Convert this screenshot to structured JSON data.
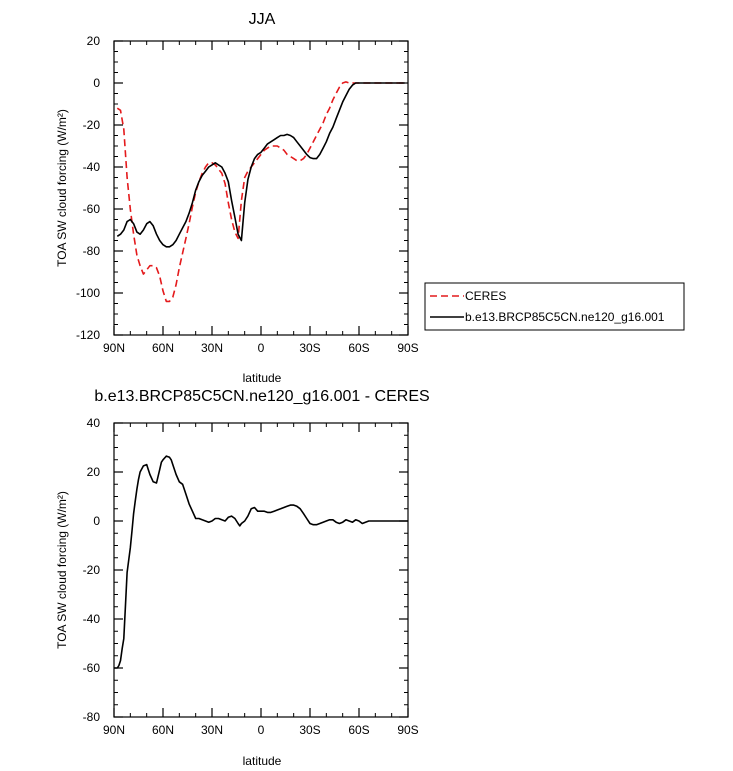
{
  "chart_data": [
    {
      "type": "line",
      "title": "JJA",
      "xlabel": "latitude",
      "ylabel": "TOA SW cloud forcing (W/m²)",
      "xlim": [
        -90,
        90
      ],
      "ylim": [
        -120,
        20
      ],
      "x_tick_values": [
        -90,
        -60,
        -30,
        0,
        30,
        60,
        90
      ],
      "x_tick_labels": [
        "90N",
        "60N",
        "30N",
        "0",
        "30S",
        "60S",
        "90S"
      ],
      "y_tick_values": [
        20,
        0,
        -20,
        -40,
        -60,
        -80,
        -100,
        -120
      ],
      "y_tick_labels": [
        "20",
        "0",
        "-20",
        "-40",
        "-60",
        "-80",
        "-100",
        "-120"
      ],
      "legend_position": "outside-right",
      "series": [
        {
          "name": "CERES",
          "color": "#e41a1c",
          "dash": "dashed",
          "x": [
            -88,
            -86,
            -84,
            -82,
            -80,
            -78,
            -76,
            -74,
            -72,
            -70,
            -68,
            -66,
            -64,
            -62,
            -60,
            -58,
            -56,
            -54,
            -52,
            -50,
            -48,
            -46,
            -44,
            -42,
            -40,
            -38,
            -36,
            -34,
            -32,
            -30,
            -28,
            -26,
            -24,
            -22,
            -20,
            -18,
            -16,
            -14,
            -12,
            -10,
            -8,
            -6,
            -4,
            -2,
            0,
            2,
            4,
            6,
            8,
            10,
            12,
            14,
            16,
            18,
            20,
            22,
            24,
            26,
            28,
            30,
            32,
            34,
            36,
            38,
            40,
            42,
            44,
            46,
            48,
            50,
            52,
            54,
            56,
            58,
            60,
            62,
            64,
            66,
            68,
            70,
            72,
            74,
            76,
            78,
            80,
            82,
            84,
            86,
            88
          ],
          "y": [
            -12,
            -13,
            -22,
            -45,
            -60,
            -72,
            -82,
            -87,
            -91,
            -89,
            -87,
            -87,
            -88,
            -92,
            -99,
            -104,
            -104,
            -102,
            -96,
            -88,
            -81,
            -74,
            -67,
            -59,
            -52,
            -47,
            -43,
            -40,
            -38,
            -38,
            -39,
            -41,
            -43,
            -48,
            -57,
            -65,
            -71,
            -74,
            -56,
            -45,
            -42,
            -40,
            -38,
            -36,
            -34,
            -32,
            -31,
            -30,
            -30,
            -30,
            -31,
            -32,
            -34,
            -35,
            -36,
            -37,
            -37,
            -36,
            -34,
            -31,
            -28,
            -25,
            -22,
            -19,
            -15,
            -12,
            -8,
            -5,
            -2,
            0,
            0.5,
            0,
            0,
            0,
            0,
            0,
            0,
            0,
            0,
            0,
            0,
            0,
            0,
            0,
            0,
            0,
            0,
            0,
            0
          ]
        },
        {
          "name": "b.e13.BRCP85C5CN.ne120_g16.001",
          "color": "#000000",
          "dash": "solid",
          "x": [
            -88,
            -86,
            -84,
            -82,
            -80,
            -78,
            -76,
            -74,
            -72,
            -70,
            -68,
            -66,
            -64,
            -62,
            -60,
            -58,
            -56,
            -54,
            -52,
            -50,
            -48,
            -46,
            -44,
            -42,
            -40,
            -38,
            -36,
            -34,
            -32,
            -30,
            -28,
            -26,
            -24,
            -22,
            -20,
            -18,
            -16,
            -14,
            -12,
            -10,
            -8,
            -6,
            -4,
            -2,
            0,
            2,
            4,
            6,
            8,
            10,
            12,
            14,
            16,
            18,
            20,
            22,
            24,
            26,
            28,
            30,
            32,
            34,
            36,
            38,
            40,
            42,
            44,
            46,
            48,
            50,
            52,
            54,
            56,
            58,
            60,
            62,
            64,
            66,
            68,
            70,
            72,
            74,
            76,
            78,
            80,
            82,
            84,
            86,
            88
          ],
          "y": [
            -73,
            -72,
            -70,
            -66,
            -65,
            -67,
            -71,
            -72,
            -70,
            -67,
            -66,
            -68,
            -72,
            -75,
            -77,
            -78,
            -78,
            -77,
            -75,
            -72,
            -69,
            -66,
            -62,
            -57,
            -51,
            -47,
            -44,
            -42,
            -40,
            -39,
            -38,
            -39,
            -40,
            -43,
            -47,
            -56,
            -64,
            -72,
            -75,
            -57,
            -46,
            -40,
            -36,
            -34,
            -33,
            -31,
            -29,
            -28,
            -27,
            -26,
            -25,
            -25,
            -24.5,
            -25,
            -26,
            -28,
            -30,
            -32,
            -34,
            -35.5,
            -36,
            -36,
            -34,
            -31,
            -28,
            -24,
            -21,
            -17,
            -13,
            -9,
            -6,
            -3,
            -1,
            0,
            0,
            0,
            0,
            0,
            0,
            0,
            0,
            0,
            0,
            0,
            0,
            0,
            0,
            0,
            0
          ]
        }
      ]
    },
    {
      "type": "line",
      "title": "b.e13.BRCP85C5CN.ne120_g16.001 - CERES",
      "xlabel": "latitude",
      "ylabel": "TOA SW cloud forcing (W/m²)",
      "xlim": [
        -90,
        90
      ],
      "ylim": [
        -80,
        40
      ],
      "x_tick_values": [
        -90,
        -60,
        -30,
        0,
        30,
        60,
        90
      ],
      "x_tick_labels": [
        "90N",
        "60N",
        "30N",
        "0",
        "30S",
        "60S",
        "90S"
      ],
      "y_tick_values": [
        40,
        20,
        0,
        -20,
        -40,
        -60,
        -80
      ],
      "y_tick_labels": [
        "40",
        "20",
        "0",
        "-20",
        "-40",
        "-60",
        "-80"
      ],
      "series": [
        {
          "color": "#000000",
          "dash": "solid",
          "x": [
            -90,
            -88,
            -87,
            -86,
            -85,
            -84,
            -83,
            -82,
            -81,
            -80,
            -79,
            -78,
            -77,
            -76,
            -75,
            -74,
            -72,
            -70,
            -69,
            -68,
            -66,
            -64,
            -62,
            -61,
            -60,
            -58,
            -56,
            -55,
            -54,
            -52,
            -50,
            -48,
            -46,
            -44,
            -42,
            -40,
            -38,
            -36,
            -34,
            -32,
            -30,
            -28,
            -26,
            -24,
            -22,
            -20,
            -18,
            -16,
            -14,
            -13,
            -12,
            -10,
            -8,
            -6,
            -4,
            -2,
            0,
            2,
            4,
            6,
            8,
            10,
            12,
            14,
            16,
            18,
            20,
            22,
            24,
            26,
            28,
            30,
            32,
            34,
            36,
            38,
            40,
            42,
            44,
            46,
            48,
            50,
            52,
            54,
            56,
            58,
            60,
            62,
            64,
            66,
            68,
            70,
            72,
            74,
            76,
            78,
            80,
            82,
            84,
            86,
            88,
            90
          ],
          "y": [
            -60,
            -60,
            -59,
            -57,
            -52,
            -48,
            -35,
            -21,
            -16,
            -11,
            -4,
            3,
            8,
            13,
            17,
            20,
            22.5,
            23,
            21,
            19,
            16,
            15.5,
            21,
            24,
            25,
            26.5,
            26,
            25,
            23,
            19,
            16,
            15,
            11,
            7,
            4,
            1,
            1,
            0.5,
            0,
            -0.5,
            0,
            1,
            1,
            0.5,
            0,
            1.5,
            2,
            1,
            -1,
            -2,
            -1,
            0,
            2,
            5,
            5.5,
            4,
            4,
            4,
            3.5,
            3.5,
            4,
            4.5,
            5,
            5.5,
            6,
            6.5,
            6.5,
            6,
            5,
            3,
            1,
            -1,
            -1.5,
            -1.5,
            -1,
            -0.5,
            0,
            0.5,
            0.5,
            -0.5,
            -1,
            -0.5,
            0.5,
            0,
            -0.5,
            0.5,
            0,
            -1,
            -0.5,
            0,
            0,
            0,
            0,
            0,
            0,
            0,
            0,
            0,
            0,
            0,
            0,
            0
          ]
        }
      ]
    }
  ]
}
